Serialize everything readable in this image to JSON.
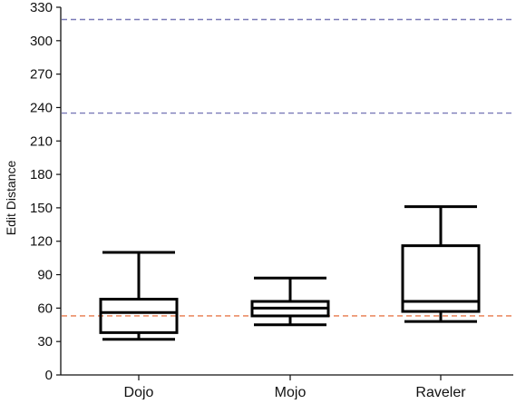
{
  "chart_data": {
    "type": "box",
    "ylabel": "Edit Distance",
    "xlabel": "",
    "title": "",
    "ylim": [
      0,
      330
    ],
    "yticks": [
      0,
      30,
      60,
      90,
      120,
      150,
      180,
      210,
      240,
      270,
      300,
      330
    ],
    "categories": [
      "Dojo",
      "Mojo",
      "Raveler"
    ],
    "boxes": [
      {
        "category": "Dojo",
        "whisker_low": 32,
        "q1": 38,
        "median": 56,
        "q3": 68,
        "whisker_high": 110
      },
      {
        "category": "Mojo",
        "whisker_low": 45,
        "q1": 53,
        "median": 60,
        "q3": 66,
        "whisker_high": 87
      },
      {
        "category": "Raveler",
        "whisker_low": 48,
        "q1": 57,
        "median": 66,
        "q3": 116,
        "whisker_high": 151
      }
    ],
    "reference_lines": [
      {
        "value": 319,
        "color": "#7a7ab8",
        "style": "dashed"
      },
      {
        "value": 235,
        "color": "#7a7ab8",
        "style": "dashed"
      },
      {
        "value": 53,
        "color": "#e8784a",
        "style": "dashed"
      }
    ],
    "grid": false,
    "legend": "none"
  }
}
